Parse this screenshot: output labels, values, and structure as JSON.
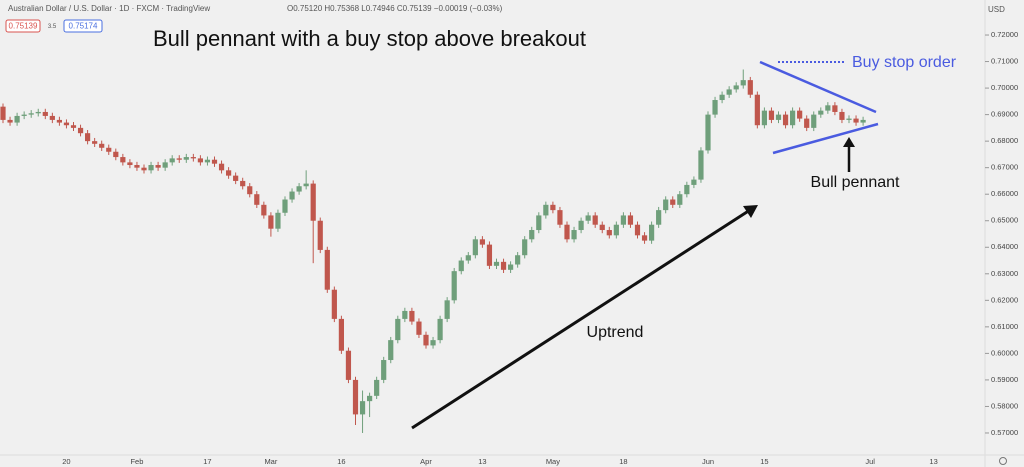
{
  "chart_data": {
    "type": "candlestick",
    "header": {
      "symbol": "Australian Dollar / U.S. Dollar · 1D · FXCM · TradingView",
      "ohlc": "O0.75120 H0.75368 L0.74946 C0.75139 −0.00019 (−0.03%)",
      "bid": "0.75139",
      "spread": "3.5",
      "ask": "0.75174",
      "currency": "USD"
    },
    "title": "Bull pennant with a buy stop above breakout",
    "annotations": {
      "buy_stop": "Buy stop order",
      "pennant": "Bull pennant",
      "uptrend": "Uptrend"
    },
    "up_color": "#6f9f7b",
    "down_color": "#c0574d",
    "ylim": [
      0.5617,
      0.7332
    ],
    "yticks": [
      {
        "value": 0.57,
        "label": "0.57000"
      },
      {
        "value": 0.58,
        "label": "0.58000"
      },
      {
        "value": 0.59,
        "label": "0.59000"
      },
      {
        "value": 0.6,
        "label": "0.60000"
      },
      {
        "value": 0.61,
        "label": "0.61000"
      },
      {
        "value": 0.62,
        "label": "0.62000"
      },
      {
        "value": 0.63,
        "label": "0.63000"
      },
      {
        "value": 0.64,
        "label": "0.64000"
      },
      {
        "value": 0.65,
        "label": "0.65000"
      },
      {
        "value": 0.66,
        "label": "0.66000"
      },
      {
        "value": 0.67,
        "label": "0.67000"
      },
      {
        "value": 0.68,
        "label": "0.68000"
      },
      {
        "value": 0.69,
        "label": "0.69000"
      },
      {
        "value": 0.7,
        "label": "0.70000"
      },
      {
        "value": 0.71,
        "label": "0.71000"
      },
      {
        "value": 0.72,
        "label": "0.72000"
      }
    ],
    "categories": [
      null,
      null,
      null,
      null,
      null,
      null,
      null,
      null,
      null,
      "20",
      null,
      null,
      null,
      null,
      null,
      null,
      null,
      null,
      null,
      "Feb",
      null,
      null,
      null,
      null,
      null,
      null,
      null,
      null,
      null,
      "17",
      null,
      null,
      null,
      null,
      null,
      null,
      null,
      null,
      "Mar",
      null,
      null,
      null,
      null,
      null,
      null,
      null,
      null,
      null,
      "16",
      null,
      null,
      null,
      null,
      null,
      null,
      null,
      null,
      null,
      null,
      null,
      "Apr",
      null,
      null,
      null,
      null,
      null,
      null,
      null,
      "13",
      null,
      null,
      null,
      null,
      null,
      null,
      null,
      null,
      null,
      "May",
      null,
      null,
      null,
      null,
      null,
      null,
      null,
      null,
      null,
      "18",
      null,
      null,
      null,
      null,
      null,
      null,
      null,
      null,
      null,
      null,
      null,
      "Jun",
      null,
      null,
      null,
      null,
      null,
      null,
      null,
      "15",
      null,
      null,
      null,
      null,
      null,
      null,
      null,
      null,
      null,
      null,
      null,
      null,
      null,
      null,
      "Jul",
      null,
      null,
      null,
      null,
      null,
      null,
      null,
      null,
      "13",
      null
    ],
    "open": [
      0.693,
      0.688,
      0.687,
      0.6895,
      0.69,
      0.6905,
      0.691,
      0.6895,
      0.688,
      0.687,
      0.686,
      0.685,
      0.683,
      0.68,
      0.679,
      0.6775,
      0.676,
      0.674,
      0.672,
      0.671,
      0.67,
      0.669,
      0.671,
      0.67,
      0.672,
      0.6735,
      0.673,
      0.674,
      0.6735,
      0.672,
      0.673,
      0.6715,
      0.669,
      0.667,
      0.665,
      0.663,
      0.66,
      0.656,
      0.652,
      0.647,
      0.653,
      0.658,
      0.661,
      0.663,
      0.664,
      0.65,
      0.639,
      0.624,
      0.613,
      0.601,
      0.59,
      0.577,
      0.582,
      0.584,
      0.59,
      0.5975,
      0.605,
      0.613,
      0.616,
      0.612,
      0.607,
      0.603,
      0.605,
      0.613,
      0.62,
      0.631,
      0.635,
      0.637,
      0.643,
      0.641,
      0.633,
      0.6345,
      0.6315,
      0.6335,
      0.637,
      0.643,
      0.6465,
      0.652,
      0.656,
      0.654,
      0.6485,
      0.643,
      0.6465,
      0.65,
      0.652,
      0.6485,
      0.6465,
      0.6445,
      0.6485,
      0.652,
      0.6485,
      0.6445,
      0.6425,
      0.6485,
      0.654,
      0.658,
      0.656,
      0.66,
      0.6635,
      0.6655,
      0.6765,
      0.69,
      0.6955,
      0.6975,
      0.6995,
      0.701,
      0.703,
      0.6975,
      0.686,
      0.6915,
      0.688,
      0.69,
      0.686,
      0.6915,
      0.6885,
      0.685,
      0.69,
      0.6915,
      0.6935,
      0.691,
      0.688,
      0.6885,
      0.687,
      null,
      null,
      null,
      null,
      null,
      null,
      null,
      null,
      null,
      null,
      null
    ],
    "high": [
      0.6942,
      0.6892,
      0.6907,
      0.6912,
      0.6917,
      0.6922,
      0.6922,
      0.6907,
      0.6892,
      0.6882,
      0.6872,
      0.6862,
      0.6842,
      0.6812,
      0.6802,
      0.6787,
      0.6772,
      0.6752,
      0.6732,
      0.6722,
      0.6712,
      0.6722,
      0.6722,
      0.6732,
      0.6747,
      0.6747,
      0.6752,
      0.6752,
      0.6747,
      0.6742,
      0.6742,
      0.6727,
      0.6702,
      0.6682,
      0.6662,
      0.6642,
      0.6612,
      0.6572,
      0.6532,
      0.6542,
      0.6592,
      0.6622,
      0.6642,
      0.669,
      0.6652,
      0.6512,
      0.6402,
      0.6252,
      0.6142,
      0.6022,
      0.5912,
      0.586,
      0.5852,
      0.5912,
      0.5987,
      0.6062,
      0.6142,
      0.6172,
      0.6172,
      0.6132,
      0.6082,
      0.6062,
      0.6142,
      0.6212,
      0.6322,
      0.6362,
      0.6382,
      0.6442,
      0.6442,
      0.6422,
      0.6357,
      0.6357,
      0.6347,
      0.6382,
      0.6442,
      0.6477,
      0.6532,
      0.6572,
      0.6572,
      0.6552,
      0.6497,
      0.6477,
      0.6512,
      0.6532,
      0.6532,
      0.6497,
      0.6477,
      0.6497,
      0.6532,
      0.6532,
      0.6497,
      0.6457,
      0.6497,
      0.6552,
      0.6592,
      0.6592,
      0.6612,
      0.6647,
      0.6667,
      0.6777,
      0.6912,
      0.6967,
      0.6987,
      0.7007,
      0.7022,
      0.707,
      0.7042,
      0.6987,
      0.6927,
      0.6927,
      0.6912,
      0.6912,
      0.6927,
      0.6927,
      0.6897,
      0.6912,
      0.6927,
      0.6947,
      0.6947,
      0.6922,
      0.6897,
      0.6897,
      0.6892,
      null,
      null,
      null,
      null,
      null,
      null,
      null,
      null,
      null,
      null,
      null
    ],
    "low": [
      0.6868,
      0.6858,
      0.6858,
      0.6883,
      0.6888,
      0.6893,
      0.6883,
      0.6868,
      0.6858,
      0.6848,
      0.6838,
      0.6818,
      0.6788,
      0.6778,
      0.6763,
      0.6748,
      0.6728,
      0.6708,
      0.6698,
      0.6688,
      0.6678,
      0.6678,
      0.6688,
      0.6688,
      0.6708,
      0.6718,
      0.6718,
      0.6723,
      0.6708,
      0.6708,
      0.6703,
      0.6678,
      0.6658,
      0.6638,
      0.6618,
      0.6588,
      0.6548,
      0.6508,
      0.644,
      0.6458,
      0.6518,
      0.6568,
      0.6598,
      0.6618,
      0.634,
      0.6378,
      0.6228,
      0.6118,
      0.5998,
      0.5888,
      0.573,
      0.57,
      0.576,
      0.5828,
      0.5888,
      0.5963,
      0.6038,
      0.6118,
      0.6108,
      0.6058,
      0.6018,
      0.6018,
      0.6038,
      0.6118,
      0.6188,
      0.6298,
      0.6338,
      0.6358,
      0.6398,
      0.6318,
      0.6318,
      0.6303,
      0.6303,
      0.6323,
      0.6358,
      0.6418,
      0.6453,
      0.6508,
      0.6528,
      0.6473,
      0.6418,
      0.6418,
      0.6453,
      0.6488,
      0.6473,
      0.6453,
      0.6433,
      0.6433,
      0.6473,
      0.6473,
      0.6433,
      0.6413,
      0.6413,
      0.6473,
      0.6528,
      0.6548,
      0.6548,
      0.6588,
      0.6623,
      0.6643,
      0.6753,
      0.6888,
      0.6943,
      0.6963,
      0.6983,
      0.6998,
      0.6963,
      0.6848,
      0.6848,
      0.6868,
      0.6868,
      0.6848,
      0.6848,
      0.6873,
      0.6838,
      0.6838,
      0.6888,
      0.6903,
      0.6898,
      0.6868,
      0.6868,
      0.6858,
      0.6858,
      null,
      null,
      null,
      null,
      null,
      null,
      null,
      null,
      null,
      null,
      null
    ],
    "close": [
      0.688,
      0.687,
      0.6895,
      0.69,
      0.6905,
      0.691,
      0.6895,
      0.688,
      0.687,
      0.686,
      0.685,
      0.683,
      0.68,
      0.679,
      0.6775,
      0.676,
      0.674,
      0.672,
      0.671,
      0.67,
      0.669,
      0.671,
      0.67,
      0.672,
      0.6735,
      0.673,
      0.674,
      0.6735,
      0.672,
      0.673,
      0.6715,
      0.669,
      0.667,
      0.665,
      0.663,
      0.66,
      0.656,
      0.652,
      0.647,
      0.653,
      0.658,
      0.661,
      0.663,
      0.664,
      0.65,
      0.639,
      0.624,
      0.613,
      0.601,
      0.59,
      0.577,
      0.582,
      0.584,
      0.59,
      0.5975,
      0.605,
      0.613,
      0.616,
      0.612,
      0.607,
      0.603,
      0.605,
      0.613,
      0.62,
      0.631,
      0.635,
      0.637,
      0.643,
      0.641,
      0.633,
      0.6345,
      0.6315,
      0.6335,
      0.637,
      0.643,
      0.6465,
      0.652,
      0.656,
      0.654,
      0.6485,
      0.643,
      0.6465,
      0.65,
      0.652,
      0.6485,
      0.6465,
      0.6445,
      0.6485,
      0.652,
      0.6485,
      0.6445,
      0.6425,
      0.6485,
      0.654,
      0.658,
      0.656,
      0.66,
      0.6635,
      0.6655,
      0.6765,
      0.69,
      0.6955,
      0.6975,
      0.6995,
      0.701,
      0.703,
      0.6975,
      0.686,
      0.6915,
      0.688,
      0.69,
      0.686,
      0.6915,
      0.6885,
      0.685,
      0.69,
      0.6915,
      0.6935,
      0.691,
      0.688,
      0.6885,
      0.687,
      0.688,
      null,
      null,
      null,
      null,
      null,
      null,
      null,
      null,
      null,
      null,
      null
    ]
  }
}
